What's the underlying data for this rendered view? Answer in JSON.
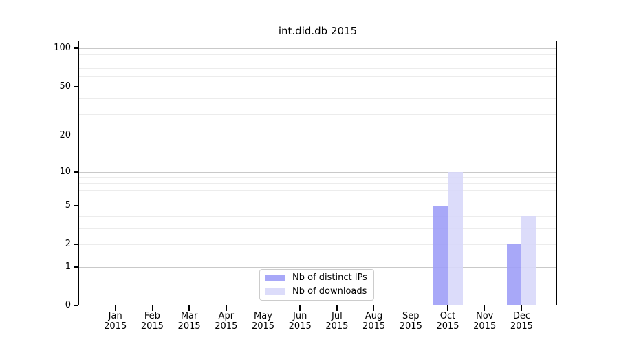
{
  "chart_data": {
    "type": "bar",
    "title": "int.did.db 2015",
    "categories": [
      "Jan 2015",
      "Feb 2015",
      "Mar 2015",
      "Apr 2015",
      "May 2015",
      "Jun 2015",
      "Jul 2015",
      "Aug 2015",
      "Sep 2015",
      "Oct 2015",
      "Nov 2015",
      "Dec 2015"
    ],
    "series": [
      {
        "name": "Nb of distinct IPs",
        "fill": "#9f9ff7",
        "fill_opacity": 0.9,
        "values": [
          0,
          0,
          0,
          0,
          0,
          0,
          0,
          0,
          0,
          5,
          0,
          2
        ]
      },
      {
        "name": "Nb of downloads",
        "fill": "#d8d8f9",
        "fill_opacity": 0.9,
        "values": [
          0,
          0,
          0,
          0,
          0,
          0,
          0,
          0,
          0,
          10,
          0,
          4
        ]
      }
    ],
    "xlabel": "",
    "ylabel": "",
    "yscale": "log1p",
    "yticks": [
      0,
      1,
      2,
      5,
      10,
      20,
      50,
      100
    ],
    "gridlines": {
      "major": [
        1,
        10,
        100
      ],
      "minor": [
        2,
        3,
        4,
        5,
        6,
        7,
        8,
        9,
        20,
        30,
        40,
        50,
        60,
        70,
        80,
        90
      ]
    },
    "ylim": [
      0,
      115
    ],
    "grid": true,
    "legend_position": "lower center",
    "colors": {
      "axis": "#000000",
      "major_grid": "#c9c9c9",
      "minor_grid": "#ececec",
      "background": "#ffffff"
    }
  }
}
